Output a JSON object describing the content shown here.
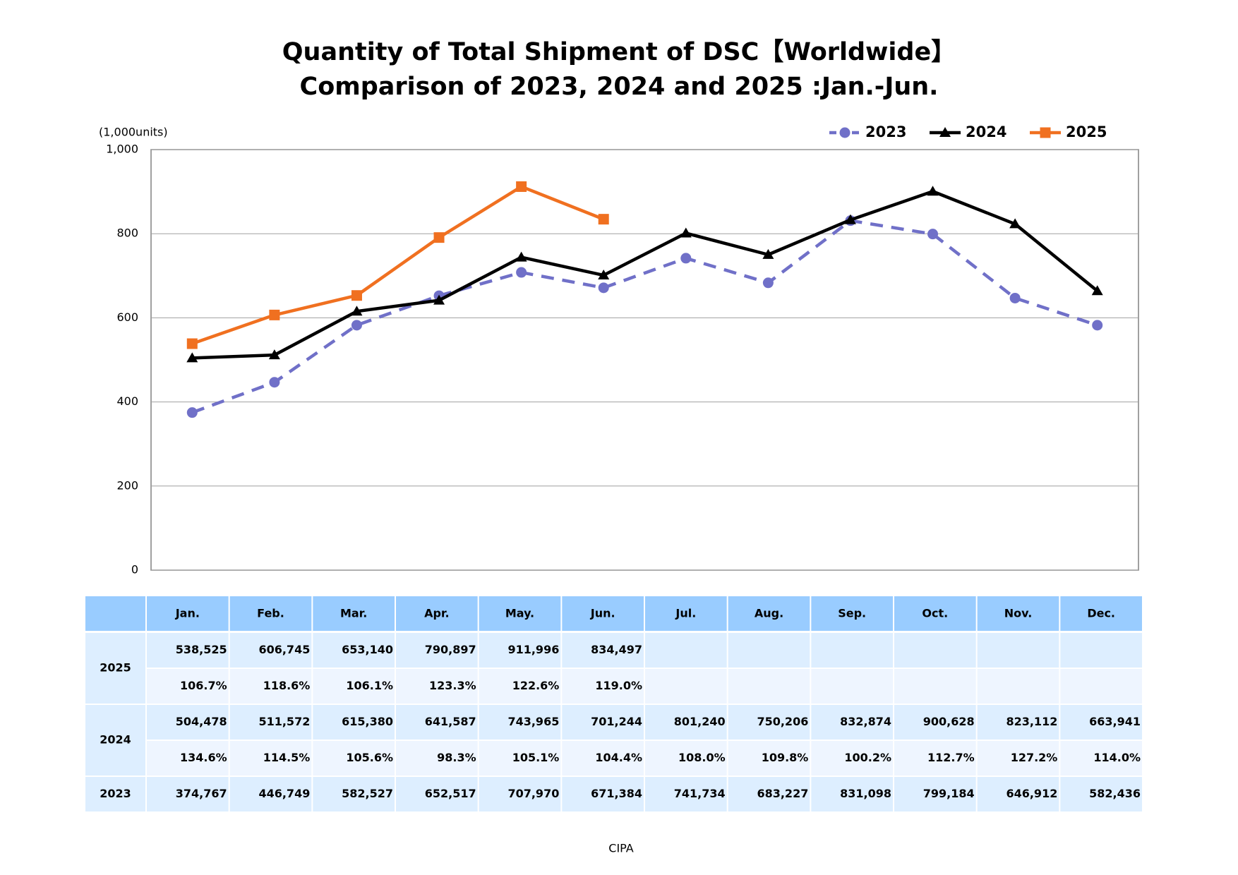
{
  "chart_data": {
    "type": "line",
    "title": "Quantity of Total Shipment of DSC【Worldwide】",
    "subtitle": "Comparison of 2023, 2024 and 2025 :Jan.-Jun.",
    "y_label": "(1,000units)",
    "source": "CIPA",
    "categories": [
      "Jan.",
      "Feb.",
      "Mar.",
      "Apr.",
      "May.",
      "Jun.",
      "Jul.",
      "Aug.",
      "Sep.",
      "Oct.",
      "Nov.",
      "Dec."
    ],
    "ylim": [
      0,
      1000
    ],
    "yticks": [
      0,
      200,
      400,
      600,
      800,
      {
        "value": 1000,
        "label": "1,000"
      }
    ],
    "grid": true,
    "legend": "top-right",
    "series": [
      {
        "name": "2023",
        "color": "#7070c8",
        "dash": true,
        "marker": "circle",
        "values": [
          374.767,
          446.749,
          582.527,
          652.517,
          707.97,
          671.384,
          741.734,
          683.227,
          831.098,
          799.184,
          646.912,
          582.436
        ],
        "value_labels": [
          "374,767",
          "446,749",
          "582,527",
          "652,517",
          "707,970",
          "671,384",
          "741,734",
          "683,227",
          "831,098",
          "799,184",
          "646,912",
          "582,436"
        ]
      },
      {
        "name": "2024",
        "color": "#000000",
        "dash": false,
        "marker": "triangle",
        "values": [
          504.478,
          511.572,
          615.38,
          641.587,
          743.965,
          701.244,
          801.24,
          750.206,
          832.874,
          900.628,
          823.112,
          663.941
        ],
        "value_labels": [
          "504,478",
          "511,572",
          "615,380",
          "641,587",
          "743,965",
          "701,244",
          "801,240",
          "750,206",
          "832,874",
          "900,628",
          "823,112",
          "663,941"
        ],
        "growth": [
          "134.6%",
          "114.5%",
          "105.6%",
          "98.3%",
          "105.1%",
          "104.4%",
          "108.0%",
          "109.8%",
          "100.2%",
          "112.7%",
          "127.2%",
          "114.0%"
        ]
      },
      {
        "name": "2025",
        "color": "#f07020",
        "dash": false,
        "marker": "square",
        "values": [
          538.525,
          606.745,
          653.14,
          790.897,
          911.996,
          834.497,
          null,
          null,
          null,
          null,
          null,
          null
        ],
        "value_labels": [
          "538,525",
          "606,745",
          "653,140",
          "790,897",
          "911,996",
          "834,497",
          null,
          null,
          null,
          null,
          null,
          null
        ],
        "growth": [
          "106.7%",
          "118.6%",
          "106.1%",
          "123.3%",
          "122.6%",
          "119.0%",
          null,
          null,
          null,
          null,
          null,
          null
        ]
      }
    ]
  }
}
